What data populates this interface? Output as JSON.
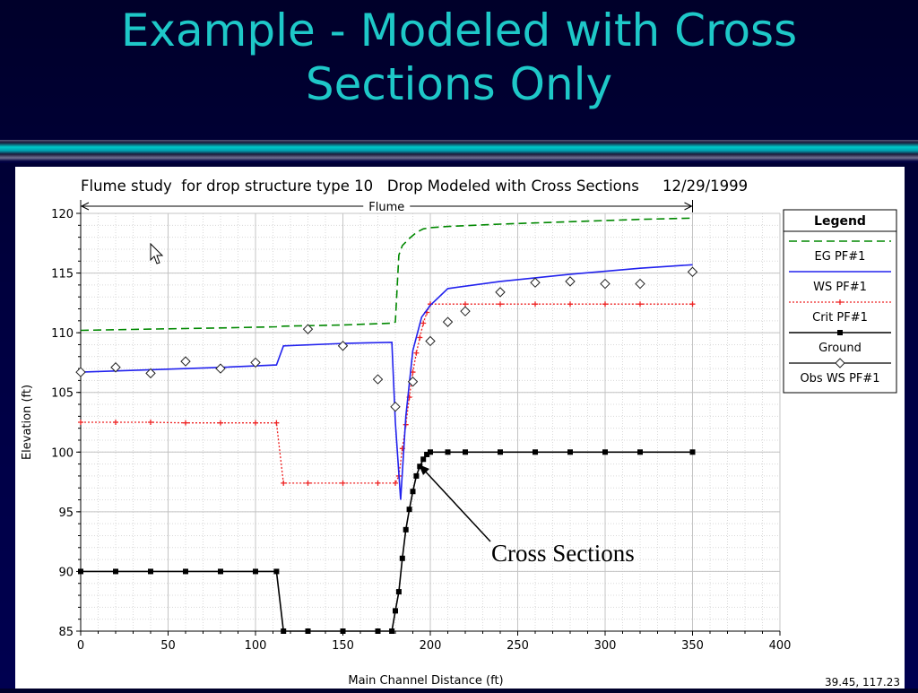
{
  "slide": {
    "title_line1": "Example - Modeled with Cross",
    "title_line2": "Sections Only",
    "annotation": "Cross Sections"
  },
  "colors": {
    "title": "#1ec8c8",
    "eg": "#008800",
    "ws": "#2222ee",
    "crit": "#ee2222",
    "ground": "#000000",
    "obs": "#000000"
  },
  "chart_data": {
    "type": "line",
    "title": "Flume study  for drop structure type 10   Drop Modeled with Cross Sections     12/29/1999",
    "span_label": "Flume",
    "xlabel": "Main Channel Distance (ft)",
    "ylabel": "Elevation (ft)",
    "xlim": [
      0,
      400
    ],
    "ylim": [
      85,
      120
    ],
    "xticks": [
      0,
      50,
      100,
      150,
      200,
      250,
      300,
      350,
      400
    ],
    "yticks": [
      85,
      90,
      95,
      100,
      105,
      110,
      115,
      120
    ],
    "grid": true,
    "cursor_readout": "39.45, 117.23",
    "legend": {
      "title": "Legend",
      "placement": "right"
    },
    "series": [
      {
        "name": "EG  PF#1",
        "style": "dashed",
        "marker": "none",
        "x": [
          0,
          40,
          80,
          112,
          116,
          150,
          178,
          180,
          182,
          184,
          188,
          192,
          196,
          200,
          210,
          240,
          280,
          320,
          350
        ],
        "y": [
          110.2,
          110.3,
          110.4,
          110.5,
          110.55,
          110.65,
          110.8,
          110.9,
          116.5,
          117.3,
          117.9,
          118.4,
          118.7,
          118.8,
          118.9,
          119.1,
          119.3,
          119.5,
          119.6
        ]
      },
      {
        "name": "WS  PF#1",
        "style": "solid",
        "marker": "none",
        "x": [
          0,
          40,
          80,
          112,
          116,
          150,
          178,
          180,
          183,
          186,
          190,
          195,
          200,
          210,
          240,
          280,
          320,
          350
        ],
        "y": [
          106.7,
          106.9,
          107.1,
          107.3,
          108.9,
          109.1,
          109.2,
          102.5,
          96.0,
          103.0,
          108.5,
          111.3,
          112.3,
          113.7,
          114.3,
          114.9,
          115.4,
          115.7
        ]
      },
      {
        "name": "Crit  PF#1",
        "style": "dotted",
        "marker": "plus",
        "x": [
          0,
          20,
          40,
          60,
          80,
          100,
          112,
          116,
          130,
          150,
          170,
          180,
          182,
          184,
          186,
          188,
          190,
          192,
          194,
          196,
          198,
          200,
          220,
          240,
          260,
          280,
          300,
          320,
          350
        ],
        "y": [
          102.5,
          102.5,
          102.5,
          102.45,
          102.45,
          102.45,
          102.45,
          97.4,
          97.4,
          97.4,
          97.4,
          97.4,
          98.0,
          100.3,
          102.3,
          104.6,
          106.7,
          108.3,
          109.6,
          110.8,
          111.7,
          112.4,
          112.4,
          112.4,
          112.4,
          112.4,
          112.4,
          112.4,
          112.4
        ]
      },
      {
        "name": "Ground",
        "style": "solid",
        "marker": "square",
        "x": [
          0,
          20,
          40,
          60,
          80,
          100,
          112,
          116,
          130,
          150,
          170,
          178,
          180,
          182,
          184,
          186,
          188,
          190,
          192,
          194,
          196,
          198,
          200,
          210,
          220,
          240,
          260,
          280,
          300,
          320,
          350
        ],
        "y": [
          90,
          90,
          90,
          90,
          90,
          90,
          90,
          85,
          85,
          85,
          85,
          85,
          86.7,
          88.3,
          91.1,
          93.5,
          95.2,
          96.7,
          98,
          98.8,
          99.4,
          99.8,
          100,
          100,
          100,
          100,
          100,
          100,
          100,
          100,
          100
        ]
      },
      {
        "name": "Obs WS  PF#1",
        "style": "none",
        "marker": "diamond",
        "x": [
          0,
          20,
          40,
          60,
          80,
          100,
          130,
          150,
          170,
          180,
          190,
          200,
          210,
          220,
          240,
          260,
          280,
          300,
          320,
          350
        ],
        "y": [
          106.7,
          107.1,
          106.6,
          107.6,
          107.0,
          107.5,
          110.3,
          108.9,
          106.1,
          103.8,
          105.9,
          109.3,
          110.9,
          111.8,
          113.4,
          114.2,
          114.3,
          114.1,
          114.1,
          115.1
        ]
      }
    ]
  }
}
